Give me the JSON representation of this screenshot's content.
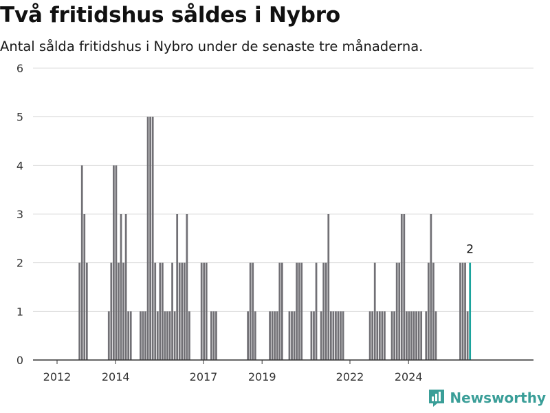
{
  "header": {
    "title": "Två fritidshus såldes i Nybro",
    "subtitle": "Antal sålda fritidshus i Nybro under de senaste tre månaderna."
  },
  "brand": {
    "name": "Newsworthy",
    "icon": "bar-chart-logo-icon",
    "color": "#3a9e98"
  },
  "colors": {
    "bar": "#717075",
    "highlight": "#1ba39c",
    "grid": "#dddddd",
    "axis": "#333333"
  },
  "chart_data": {
    "type": "bar",
    "title": "Två fritidshus såldes i Nybro",
    "xlabel": "",
    "ylabel": "",
    "ylim": [
      0,
      6
    ],
    "grid": true,
    "y_ticks": [
      "0",
      "1",
      "2",
      "3",
      "4",
      "5",
      "6"
    ],
    "x_ticks": [
      "2012",
      "2014",
      "2017",
      "2019",
      "2022",
      "2024"
    ],
    "x_tick_months": [
      0,
      24,
      60,
      84,
      120,
      144
    ],
    "series": [
      {
        "values": [
          0,
          0,
          0,
          0,
          0,
          0,
          0,
          0,
          0,
          0,
          0,
          0,
          0,
          0,
          0,
          0,
          0,
          0,
          2,
          4,
          3,
          2,
          0,
          0,
          0,
          0,
          0,
          0,
          0,
          0,
          1,
          2,
          4,
          4,
          2,
          3,
          2,
          3,
          1,
          1,
          0,
          0,
          0,
          1,
          1,
          1,
          5,
          5,
          5,
          2,
          1,
          2,
          2,
          1,
          1,
          1,
          2,
          1,
          3,
          2,
          2,
          2,
          3,
          1,
          0,
          0,
          0,
          0,
          2,
          2,
          2,
          0,
          1,
          1,
          1,
          0,
          0,
          0,
          0,
          0,
          0,
          0,
          0,
          0,
          0,
          0,
          0,
          1,
          2,
          2,
          1,
          0,
          0,
          0,
          0,
          0,
          1,
          1,
          1,
          1,
          2,
          2,
          0,
          0,
          1,
          1,
          1,
          2,
          2,
          2,
          0,
          0,
          0,
          1,
          1,
          2,
          0,
          1,
          2,
          2,
          3,
          1,
          1,
          1,
          1,
          1,
          1,
          0,
          0,
          0,
          0,
          0,
          0,
          0,
          0,
          0,
          0,
          1,
          1,
          2,
          1,
          1,
          1,
          1,
          0,
          0,
          1,
          1,
          2,
          2,
          3,
          3,
          1,
          1,
          1,
          1,
          1,
          1,
          1,
          0,
          1,
          2,
          3,
          2,
          1,
          0,
          0,
          0,
          0,
          0,
          0,
          0,
          0,
          0,
          2,
          2,
          2,
          1,
          2
        ],
        "highlight_last": true,
        "last_label": "2"
      }
    ]
  }
}
